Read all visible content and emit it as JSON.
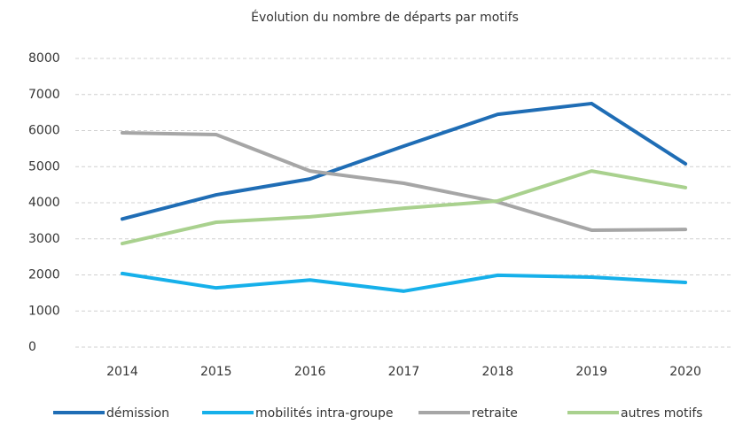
{
  "chart_data": {
    "type": "line",
    "title": "Évolution du nombre de départs par motifs",
    "categories": [
      "2014",
      "2015",
      "2016",
      "2017",
      "2018",
      "2019",
      "2020"
    ],
    "series": [
      {
        "name": "démission",
        "color": "#1f6db5",
        "values": [
          3550,
          4220,
          4660,
          5570,
          6450,
          6750,
          5080
        ]
      },
      {
        "name": "mobilités intra-groupe",
        "color": "#16b0ea",
        "values": [
          2040,
          1640,
          1860,
          1550,
          1990,
          1940,
          1790
        ]
      },
      {
        "name": "retraite",
        "color": "#a6a6a6",
        "values": [
          5940,
          5890,
          4880,
          4540,
          4020,
          3240,
          3260
        ]
      },
      {
        "name": "autres motifs",
        "color": "#a9d18e",
        "values": [
          2870,
          3460,
          3610,
          3850,
          4050,
          4880,
          4420
        ]
      }
    ],
    "ylim": [
      0,
      8000
    ],
    "yticks": [
      0,
      1000,
      2000,
      3000,
      4000,
      5000,
      6000,
      7000,
      8000
    ],
    "grid": true,
    "legend": "bottom"
  }
}
